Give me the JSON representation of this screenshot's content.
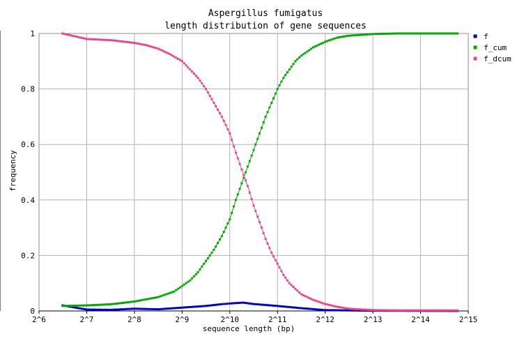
{
  "chart_data": {
    "type": "line",
    "title": "Aspergillus fumigatus",
    "subtitle": "length distribution of gene sequences",
    "xlabel": "sequence length (bp)",
    "ylabel": "frequency",
    "x_scale": "log2",
    "xlim": [
      64,
      32768
    ],
    "ylim": [
      0,
      1
    ],
    "grid": true,
    "legend_position": "top-right",
    "x_tick_labels": [
      "2^6",
      "2^7",
      "2^8",
      "2^9",
      "2^10",
      "2^11",
      "2^12",
      "2^13",
      "2^14",
      "2^15"
    ],
    "y_tick_labels": [
      "0",
      "0.2",
      "0.4",
      "0.6",
      "0.8",
      "1"
    ],
    "x_tick_values": [
      64,
      128,
      256,
      512,
      1024,
      2048,
      4096,
      8192,
      16384,
      32768
    ],
    "y_tick_values": [
      0,
      0.2,
      0.4,
      0.6,
      0.8,
      1
    ],
    "series": [
      {
        "name": "f",
        "color": "#0000cc",
        "points": [
          [
            90,
            0.02
          ],
          [
            128,
            0.005
          ],
          [
            181,
            0.004
          ],
          [
            256,
            0.008
          ],
          [
            362,
            0.006
          ],
          [
            512,
            0.012
          ],
          [
            724,
            0.018
          ],
          [
            900,
            0.024
          ],
          [
            1024,
            0.027
          ],
          [
            1250,
            0.03
          ],
          [
            1448,
            0.025
          ],
          [
            2048,
            0.018
          ],
          [
            2896,
            0.01
          ],
          [
            4096,
            0.003
          ],
          [
            8192,
            0.001
          ],
          [
            28000,
            0.0
          ]
        ]
      },
      {
        "name": "f_cum",
        "color": "#00aa00",
        "points": [
          [
            90,
            0.018
          ],
          [
            128,
            0.02
          ],
          [
            181,
            0.024
          ],
          [
            256,
            0.034
          ],
          [
            362,
            0.05
          ],
          [
            456,
            0.07
          ],
          [
            512,
            0.09
          ],
          [
            575,
            0.11
          ],
          [
            645,
            0.14
          ],
          [
            724,
            0.18
          ],
          [
            812,
            0.22
          ],
          [
            912,
            0.27
          ],
          [
            1024,
            0.33
          ],
          [
            1117,
            0.4
          ],
          [
            1218,
            0.46
          ],
          [
            1328,
            0.52
          ],
          [
            1448,
            0.58
          ],
          [
            1579,
            0.64
          ],
          [
            1722,
            0.7
          ],
          [
            1878,
            0.75
          ],
          [
            2048,
            0.8
          ],
          [
            2233,
            0.84
          ],
          [
            2435,
            0.87
          ],
          [
            2655,
            0.9
          ],
          [
            2896,
            0.92
          ],
          [
            3444,
            0.95
          ],
          [
            4096,
            0.97
          ],
          [
            4871,
            0.985
          ],
          [
            5793,
            0.992
          ],
          [
            8192,
            0.998
          ],
          [
            11585,
            1.0
          ],
          [
            28000,
            1.0
          ]
        ]
      },
      {
        "name": "f_dcum",
        "color": "#ee4488",
        "points": [
          [
            90,
            1.0
          ],
          [
            128,
            0.98
          ],
          [
            181,
            0.976
          ],
          [
            256,
            0.966
          ],
          [
            304,
            0.958
          ],
          [
            362,
            0.945
          ],
          [
            430,
            0.925
          ],
          [
            512,
            0.9
          ],
          [
            575,
            0.87
          ],
          [
            645,
            0.84
          ],
          [
            724,
            0.8
          ],
          [
            812,
            0.75
          ],
          [
            912,
            0.7
          ],
          [
            1024,
            0.64
          ],
          [
            1117,
            0.57
          ],
          [
            1218,
            0.51
          ],
          [
            1328,
            0.45
          ],
          [
            1448,
            0.38
          ],
          [
            1579,
            0.32
          ],
          [
            1722,
            0.26
          ],
          [
            1878,
            0.21
          ],
          [
            2048,
            0.17
          ],
          [
            2233,
            0.13
          ],
          [
            2435,
            0.1
          ],
          [
            2655,
            0.08
          ],
          [
            2896,
            0.06
          ],
          [
            3444,
            0.04
          ],
          [
            4096,
            0.025
          ],
          [
            4871,
            0.015
          ],
          [
            5793,
            0.008
          ],
          [
            8192,
            0.003
          ],
          [
            11585,
            0.002
          ],
          [
            28000,
            0.002
          ]
        ]
      }
    ]
  }
}
